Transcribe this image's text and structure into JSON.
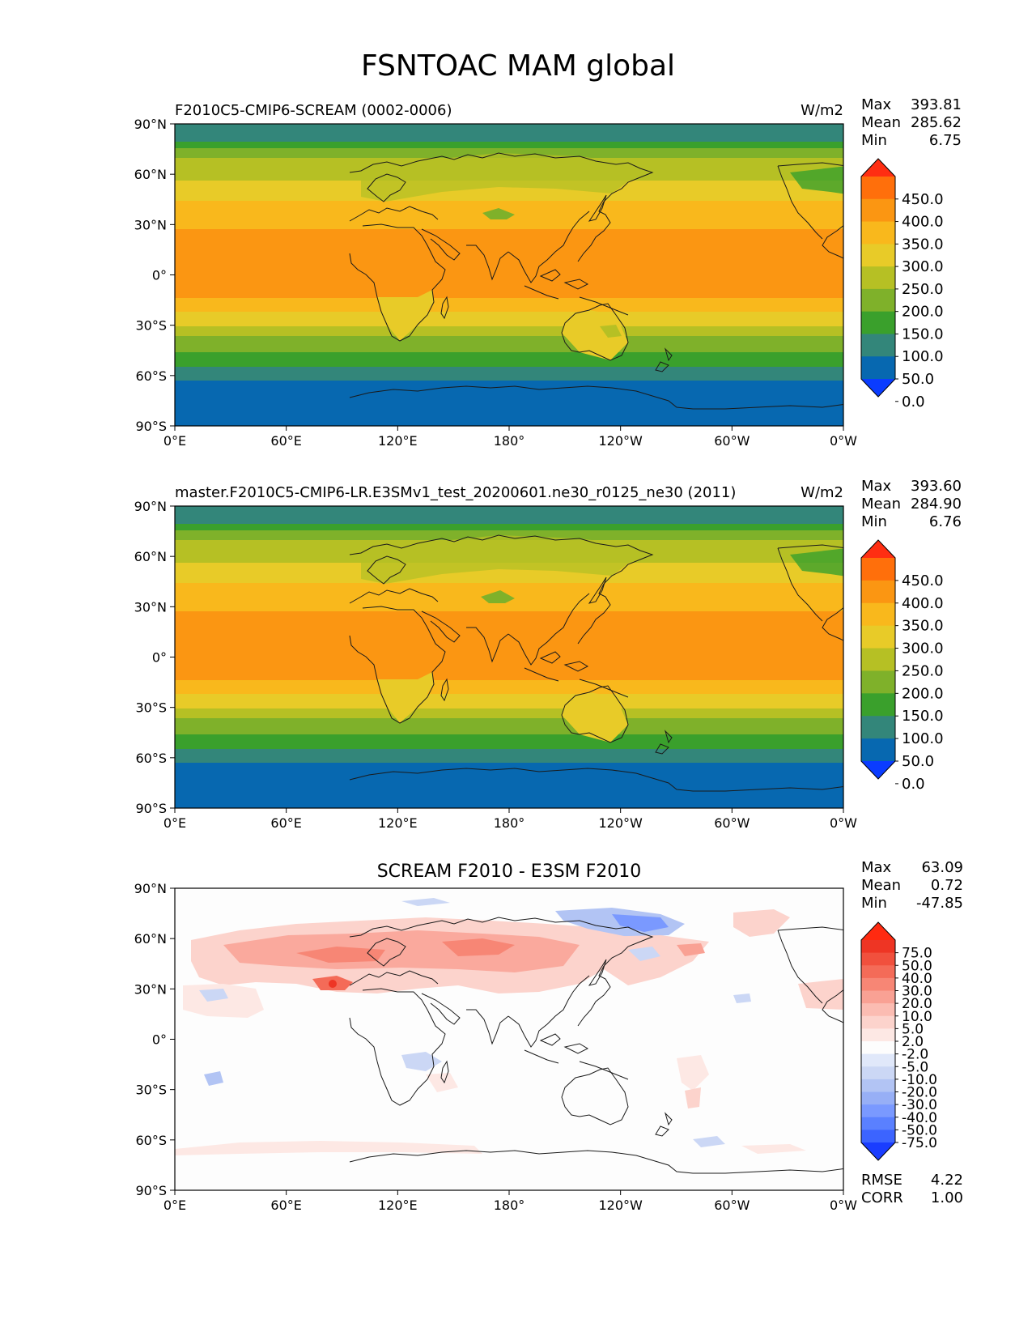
{
  "title": "FSNTOAC MAM global",
  "x_ticks": [
    "0°E",
    "60°E",
    "120°E",
    "180°",
    "120°W",
    "60°W",
    "0°W"
  ],
  "y_ticks": [
    "90°N",
    "60°N",
    "30°N",
    "0°",
    "30°S",
    "60°S",
    "90°S"
  ],
  "colors": {
    "abs": [
      "#0a3cff",
      "#0768b0",
      "#33867a",
      "#3aa02c",
      "#7fb12a",
      "#b6c024",
      "#e8cb28",
      "#f9b81c",
      "#fb9612",
      "#ff6f0b",
      "#ff2e12"
    ],
    "diff": [
      "#1a3dff",
      "#3c64ff",
      "#5a80ff",
      "#7a99ff",
      "#97aff6",
      "#b2c4f4",
      "#cbd7f5",
      "#e0e8fa",
      "#fdfdfd",
      "#fde8e4",
      "#fcd3cc",
      "#fbbcb2",
      "#f9a194",
      "#f78675",
      "#f46b58",
      "#f1503d",
      "#ee3524",
      "#ff2a10"
    ]
  },
  "panels": [
    {
      "left_title": "F2010C5-CMIP6-SCREAM (0002-0006)",
      "units": "W/m2",
      "stats": [
        {
          "label": "Max",
          "value": "393.81"
        },
        {
          "label": "Mean",
          "value": "285.62"
        },
        {
          "label": "Min",
          "value": "6.75"
        }
      ],
      "colorbar_ticks": [
        "450.0",
        "400.0",
        "350.0",
        "300.0",
        "250.0",
        "200.0",
        "150.0",
        "100.0",
        "50.0",
        "0.0"
      ]
    },
    {
      "left_title": "master.F2010C5-CMIP6-LR.E3SMv1_test_20200601.ne30_r0125_ne30 (2011)",
      "units": "W/m2",
      "stats": [
        {
          "label": "Max",
          "value": "393.60"
        },
        {
          "label": "Mean",
          "value": "284.90"
        },
        {
          "label": "Min",
          "value": "6.76"
        }
      ],
      "colorbar_ticks": [
        "450.0",
        "400.0",
        "350.0",
        "300.0",
        "250.0",
        "200.0",
        "150.0",
        "100.0",
        "50.0",
        "0.0"
      ]
    },
    {
      "center_title": "SCREAM F2010 - E3SM F2010",
      "stats": [
        {
          "label": "Max",
          "value": "63.09"
        },
        {
          "label": "Mean",
          "value": "0.72"
        },
        {
          "label": "Min",
          "value": "-47.85"
        }
      ],
      "colorbar_ticks": [
        "75.0",
        "50.0",
        "40.0",
        "30.0",
        "20.0",
        "10.0",
        "5.0",
        "2.0",
        "-2.0",
        "-5.0",
        "-10.0",
        "-20.0",
        "-30.0",
        "-40.0",
        "-50.0",
        "-75.0"
      ],
      "bottom_stats": [
        {
          "label": "RMSE",
          "value": "4.22"
        },
        {
          "label": "CORR",
          "value": "1.00"
        }
      ]
    }
  ]
}
